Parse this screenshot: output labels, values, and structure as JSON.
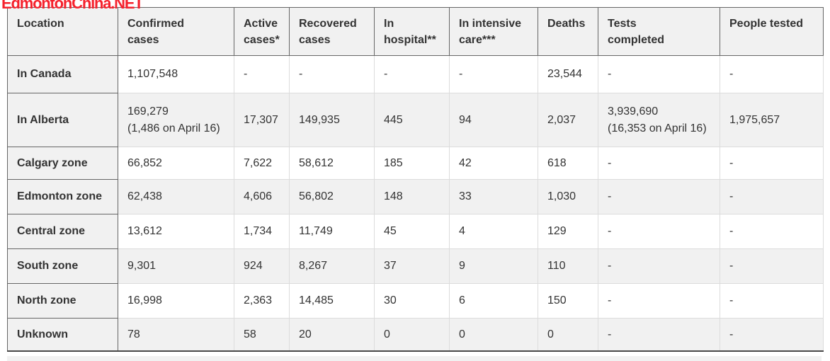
{
  "watermark": {
    "text": "EdmontonChina.NET",
    "color": "#f5222d"
  },
  "colors": {
    "header_bg": "#f1f1f1",
    "row_alt_bg": "#f1f1f1",
    "border_dark": "#666666",
    "border_light": "#dcdcdc",
    "table_bottom_border": "#474747",
    "text": "#333333",
    "watermark_red": "#f5222d"
  },
  "chart_data": {
    "type": "table",
    "columns": [
      "Location",
      "Confirmed\ncases",
      "Active\ncases*",
      "Recovered\ncases",
      "In\nhospital**",
      "In intensive\ncare***",
      "Deaths",
      "Tests\ncompleted",
      "People tested"
    ],
    "rows": [
      {
        "location": "In Canada",
        "values": [
          "1,107,548",
          "-",
          "-",
          "-",
          "-",
          "23,544",
          "-",
          "-"
        ]
      },
      {
        "location": "In Alberta",
        "values": [
          "169,279\n(1,486 on April 16)",
          "17,307",
          "149,935",
          "445",
          "94",
          "2,037",
          "3,939,690\n(16,353 on April 16)",
          "1,975,657"
        ]
      },
      {
        "location": "Calgary zone",
        "values": [
          "66,852",
          "7,622",
          "58,612",
          "185",
          "42",
          "618",
          "-",
          "-"
        ]
      },
      {
        "location": "Edmonton zone",
        "values": [
          "62,438",
          "4,606",
          "56,802",
          "148",
          "33",
          "1,030",
          "-",
          "-"
        ]
      },
      {
        "location": "Central zone",
        "values": [
          "13,612",
          "1,734",
          "11,749",
          "45",
          "4",
          "129",
          "-",
          "-"
        ]
      },
      {
        "location": "South zone",
        "values": [
          "9,301",
          "924",
          "8,267",
          "37",
          "9",
          "110",
          "-",
          "-"
        ]
      },
      {
        "location": "North zone",
        "values": [
          "16,998",
          "2,363",
          "14,485",
          "30",
          "6",
          "150",
          "-",
          "-"
        ]
      },
      {
        "location": "Unknown",
        "values": [
          "78",
          "58",
          "20",
          "0",
          "0",
          "0",
          "-",
          "-"
        ]
      }
    ]
  }
}
